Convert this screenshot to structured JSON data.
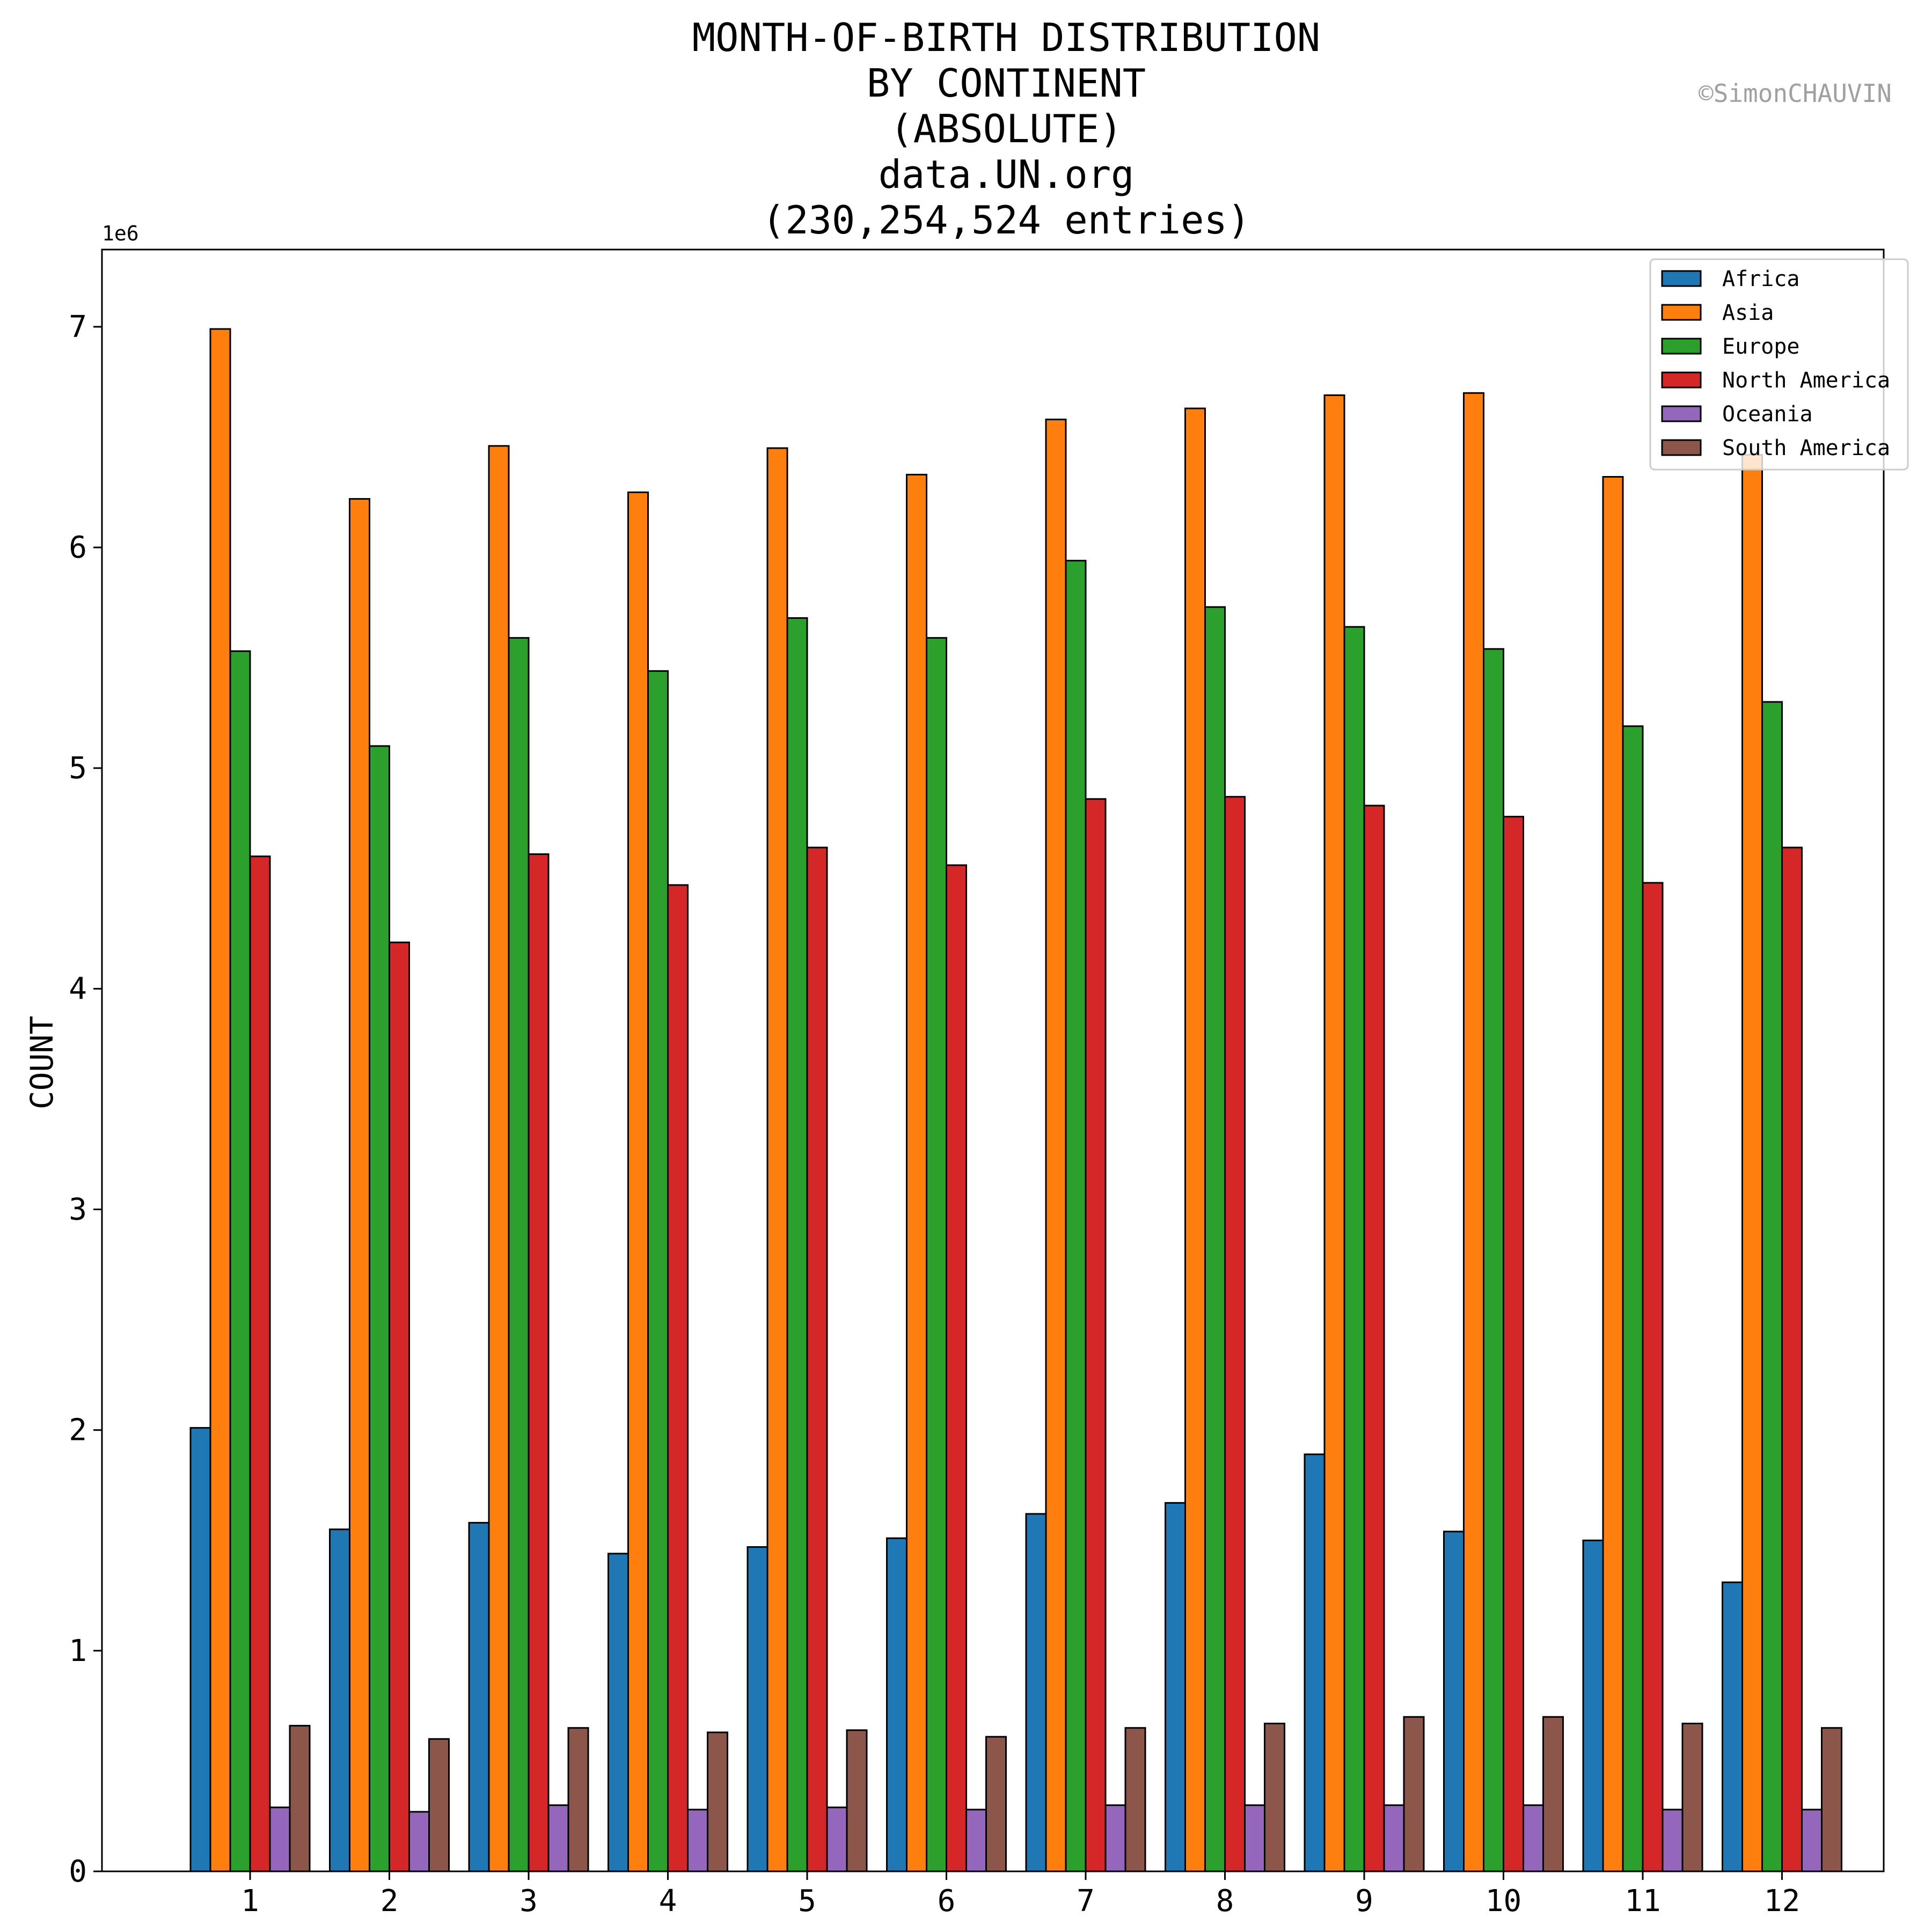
{
  "watermark": "©SimonCHAUVIN",
  "chart_data": {
    "type": "bar",
    "title_lines": [
      "MONTH-OF-BIRTH DISTRIBUTION",
      "BY CONTINENT",
      "(ABSOLUTE)",
      "data.UN.org",
      "(230,254,524 entries)"
    ],
    "xlabel": "",
    "ylabel": "COUNT",
    "y_offset_label": "1e6",
    "ylim": [
      0,
      7.35
    ],
    "y_unit_scale": 1000000,
    "yticks": [
      0,
      1,
      2,
      3,
      4,
      5,
      6,
      7
    ],
    "categories": [
      "1",
      "2",
      "3",
      "4",
      "5",
      "6",
      "7",
      "8",
      "9",
      "10",
      "11",
      "12"
    ],
    "legend_position": "top-right",
    "grid": false,
    "series": [
      {
        "name": "Africa",
        "color": "#1f77b4",
        "values": [
          2.01,
          1.55,
          1.58,
          1.44,
          1.47,
          1.51,
          1.62,
          1.67,
          1.89,
          1.54,
          1.5,
          1.31
        ]
      },
      {
        "name": "Asia",
        "color": "#ff7f0e",
        "values": [
          6.99,
          6.22,
          6.46,
          6.25,
          6.45,
          6.33,
          6.58,
          6.63,
          6.69,
          6.7,
          6.32,
          6.42
        ]
      },
      {
        "name": "Europe",
        "color": "#2ca02c",
        "values": [
          5.53,
          5.1,
          5.59,
          5.44,
          5.68,
          5.59,
          5.94,
          5.73,
          5.64,
          5.54,
          5.19,
          5.3
        ]
      },
      {
        "name": "North America",
        "color": "#d62728",
        "values": [
          4.6,
          4.21,
          4.61,
          4.47,
          4.64,
          4.56,
          4.86,
          4.87,
          4.83,
          4.78,
          4.48,
          4.64
        ]
      },
      {
        "name": "Oceania",
        "color": "#9467bd",
        "values": [
          0.29,
          0.27,
          0.3,
          0.28,
          0.29,
          0.28,
          0.3,
          0.3,
          0.3,
          0.3,
          0.28,
          0.28
        ]
      },
      {
        "name": "South America",
        "color": "#8c564b",
        "values": [
          0.66,
          0.6,
          0.65,
          0.63,
          0.64,
          0.61,
          0.65,
          0.67,
          0.7,
          0.7,
          0.67,
          0.65
        ]
      }
    ]
  }
}
